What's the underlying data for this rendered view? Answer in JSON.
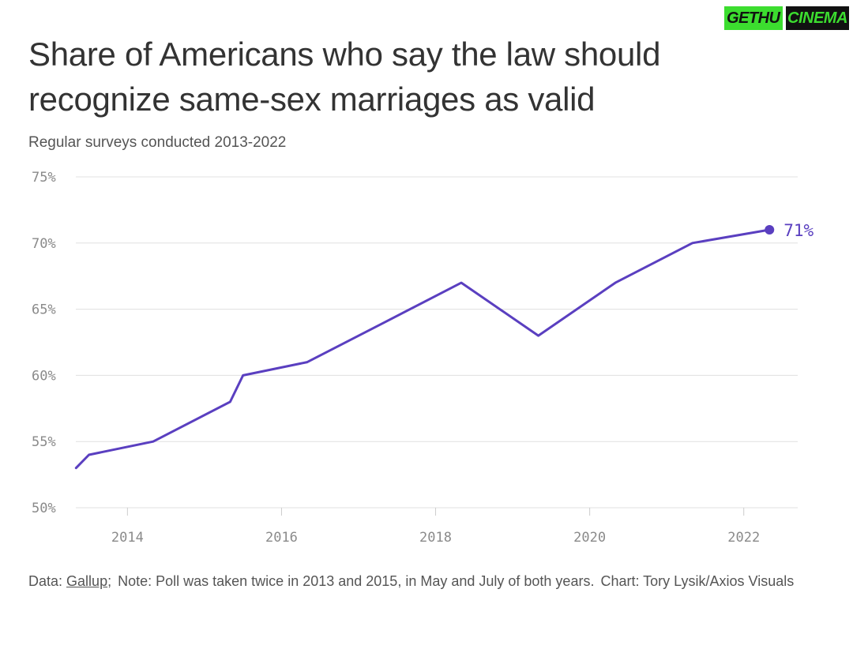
{
  "header": {
    "title": "Share of Americans who say the law should recognize same-sex marriages as valid",
    "subtitle": "Regular surveys conducted 2013-2022"
  },
  "footer": {
    "data_prefix": "Data:",
    "data_source": "Gallup",
    "data_suffix": ";",
    "note": "Note: Poll was taken twice in 2013 and 2015, in May and July of both years.",
    "credit": "Chart: Tory Lysik/Axios Visuals"
  },
  "watermark": {
    "part1": "GETHU",
    "part2": "CINEMA"
  },
  "colors": {
    "line": "#5a3fc0",
    "grid": "#e0e0e0",
    "text": "#333333",
    "watermark_green": "#3cdd2f"
  },
  "chart_data": {
    "type": "line",
    "title": "Share of Americans who say the law should recognize same-sex marriages as valid",
    "subtitle": "Regular surveys conducted 2013-2022",
    "xlabel": "",
    "ylabel": "",
    "x_ticks": [
      "2014",
      "2016",
      "2018",
      "2020",
      "2022"
    ],
    "y_ticks": [
      "50%",
      "55%",
      "60%",
      "65%",
      "70%",
      "75%"
    ],
    "xlim": [
      2013.33,
      2022.7
    ],
    "ylim": [
      50,
      75
    ],
    "grid": "horizontal",
    "series": [
      {
        "points": [
          {
            "x": "2013-05",
            "y": 53
          },
          {
            "x": "2013-07",
            "y": 54
          },
          {
            "x": "2014-05",
            "y": 55
          },
          {
            "x": "2015-05",
            "y": 58
          },
          {
            "x": "2015-07",
            "y": 60
          },
          {
            "x": "2016-05",
            "y": 61
          },
          {
            "x": "2017-05",
            "y": 64
          },
          {
            "x": "2018-05",
            "y": 67
          },
          {
            "x": "2019-05",
            "y": 63
          },
          {
            "x": "2020-05",
            "y": 67
          },
          {
            "x": "2021-05",
            "y": 70
          },
          {
            "x": "2022-05",
            "y": 71
          }
        ]
      }
    ],
    "end_label": "71%"
  }
}
